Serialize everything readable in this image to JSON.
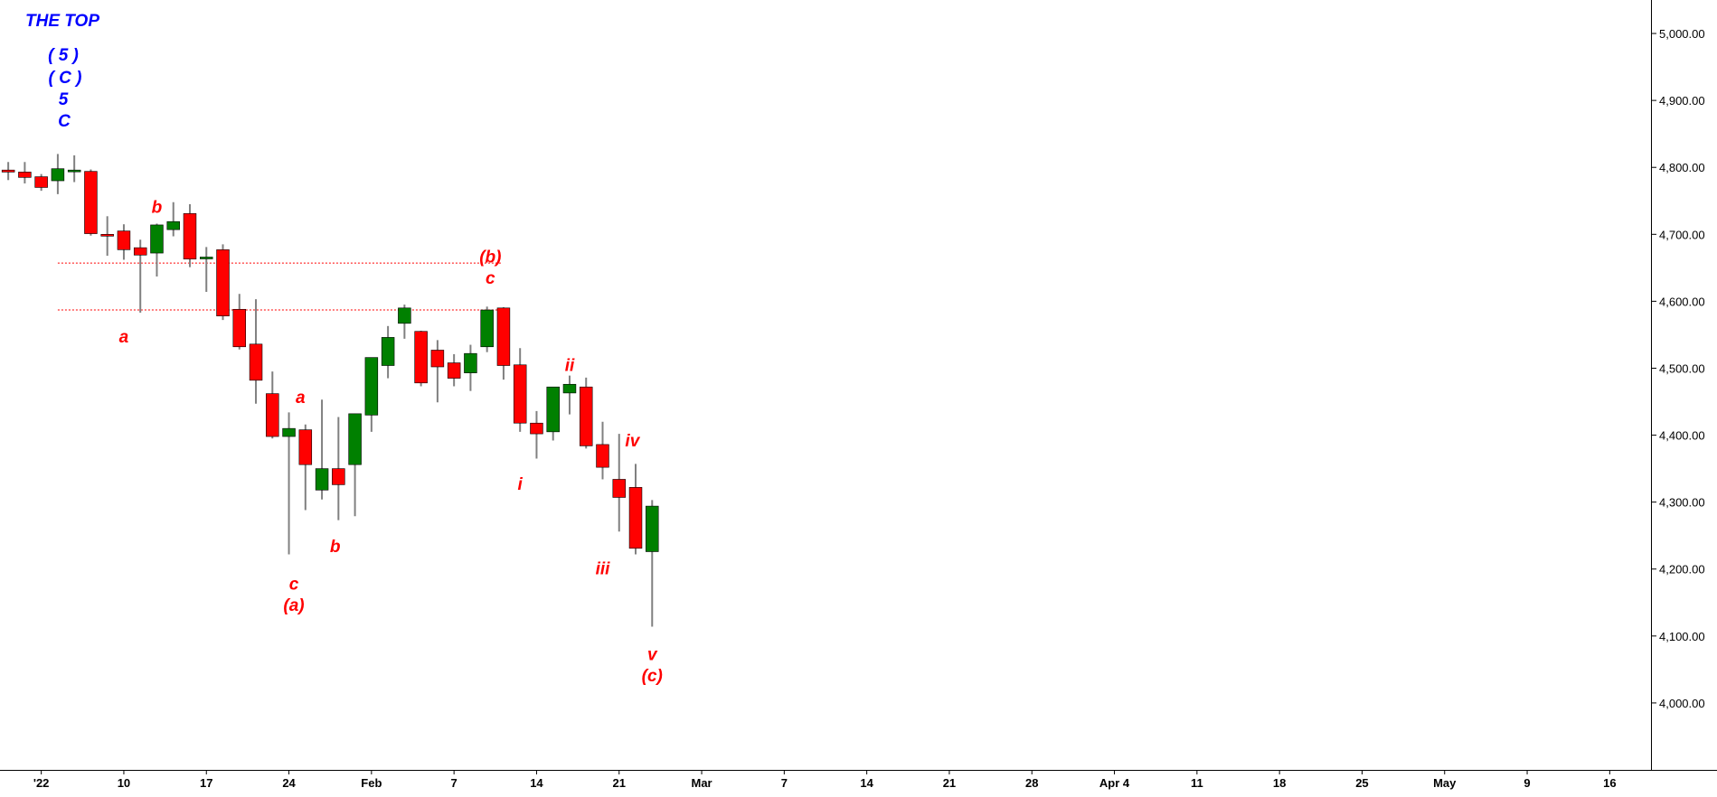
{
  "chart_data": {
    "type": "candlestick",
    "title": "THE TOP",
    "title_labels": [
      "( 5 )",
      "( C )",
      "5",
      "C"
    ],
    "y_ticks": [
      4000,
      4100,
      4200,
      4300,
      4400,
      4500,
      4600,
      4700,
      4800,
      4900,
      5000
    ],
    "y_tick_labels": [
      "4,000.00",
      "4,100.00",
      "4,200.00",
      "4,300.00",
      "4,400.00",
      "4,500.00",
      "4,600.00",
      "4,700.00",
      "4,800.00",
      "4,900.00",
      "5,000.00"
    ],
    "ylim": [
      3900,
      5050
    ],
    "x_tick_labels": [
      "'22",
      "10",
      "17",
      "24",
      "Feb",
      "7",
      "14",
      "21",
      "Mar",
      "7",
      "14",
      "21",
      "28",
      "Apr 4",
      "11",
      "18",
      "25",
      "May",
      "9",
      "16"
    ],
    "x_tick_slots": [
      2,
      7,
      12,
      17,
      22,
      27,
      32,
      37,
      42,
      47,
      52,
      57,
      62,
      67,
      72,
      77,
      82,
      87,
      92,
      97
    ],
    "slots_visible": 100,
    "grid": false,
    "up_color": "#008000",
    "down_color": "#ff0000",
    "wick_color": "#808080",
    "horizontal_levels": [
      4657,
      4587
    ],
    "level_color": "#ff0000",
    "candles": [
      {
        "o": 4796,
        "h": 4808,
        "l": 4781,
        "c": 4793
      },
      {
        "o": 4793,
        "h": 4808,
        "l": 4776,
        "c": 4785
      },
      {
        "o": 4786,
        "h": 4790,
        "l": 4765,
        "c": 4770
      },
      {
        "o": 4780,
        "h": 4820,
        "l": 4760,
        "c": 4798
      },
      {
        "o": 4795,
        "h": 4818,
        "l": 4778,
        "c": 4796
      },
      {
        "o": 4794,
        "h": 4797,
        "l": 4698,
        "c": 4701
      },
      {
        "o": 4700,
        "h": 4727,
        "l": 4668,
        "c": 4698
      },
      {
        "o": 4705,
        "h": 4715,
        "l": 4662,
        "c": 4677
      },
      {
        "o": 4680,
        "h": 4692,
        "l": 4583,
        "c": 4669
      },
      {
        "o": 4672,
        "h": 4716,
        "l": 4637,
        "c": 4714
      },
      {
        "o": 4707,
        "h": 4748,
        "l": 4697,
        "c": 4719
      },
      {
        "o": 4731,
        "h": 4745,
        "l": 4651,
        "c": 4663
      },
      {
        "o": 4666,
        "h": 4681,
        "l": 4614,
        "c": 4666
      },
      {
        "o": 4677,
        "h": 4685,
        "l": 4572,
        "c": 4578
      },
      {
        "o": 4588,
        "h": 4611,
        "l": 4528,
        "c": 4532
      },
      {
        "o": 4536,
        "h": 4603,
        "l": 4447,
        "c": 4482
      },
      {
        "o": 4462,
        "h": 4495,
        "l": 4395,
        "c": 4398
      },
      {
        "o": 4398,
        "h": 4434,
        "l": 4222,
        "c": 4410
      },
      {
        "o": 4408,
        "h": 4416,
        "l": 4288,
        "c": 4356
      },
      {
        "o": 4318,
        "h": 4453,
        "l": 4304,
        "c": 4350
      },
      {
        "o": 4350,
        "h": 4427,
        "l": 4273,
        "c": 4326
      },
      {
        "o": 4356,
        "h": 4432,
        "l": 4279,
        "c": 4432
      },
      {
        "o": 4430,
        "h": 4515,
        "l": 4405,
        "c": 4516
      },
      {
        "o": 4504,
        "h": 4563,
        "l": 4485,
        "c": 4546
      },
      {
        "o": 4567,
        "h": 4595,
        "l": 4544,
        "c": 4590
      },
      {
        "o": 4555,
        "h": 4556,
        "l": 4473,
        "c": 4478
      },
      {
        "o": 4527,
        "h": 4542,
        "l": 4449,
        "c": 4502
      },
      {
        "o": 4508,
        "h": 4521,
        "l": 4473,
        "c": 4485
      },
      {
        "o": 4493,
        "h": 4535,
        "l": 4466,
        "c": 4522
      },
      {
        "o": 4532,
        "h": 4592,
        "l": 4524,
        "c": 4587
      },
      {
        "o": 4590,
        "h": 4591,
        "l": 4483,
        "c": 4504
      },
      {
        "o": 4505,
        "h": 4530,
        "l": 4405,
        "c": 4418
      },
      {
        "o": 4418,
        "h": 4436,
        "l": 4365,
        "c": 4402
      },
      {
        "o": 4405,
        "h": 4471,
        "l": 4392,
        "c": 4472
      },
      {
        "o": 4463,
        "h": 4489,
        "l": 4431,
        "c": 4476
      },
      {
        "o": 4472,
        "h": 4486,
        "l": 4380,
        "c": 4384
      },
      {
        "o": 4386,
        "h": 4420,
        "l": 4334,
        "c": 4352
      },
      {
        "o": 4334,
        "h": 4402,
        "l": 4256,
        "c": 4307
      },
      {
        "o": 4322,
        "h": 4357,
        "l": 4222,
        "c": 4231
      },
      {
        "o": 4226,
        "h": 4303,
        "l": 4114,
        "c": 4294
      }
    ],
    "wave_labels": [
      {
        "text": "b",
        "slot": 9,
        "value": 4732,
        "dy": 0
      },
      {
        "text": "a",
        "slot": 7,
        "value": 4568,
        "dy": 22
      },
      {
        "text": "(b)",
        "slot": 29.2,
        "value": 4658,
        "dy": 0
      },
      {
        "text": "c",
        "slot": 29.2,
        "value": 4626,
        "dy": 0
      },
      {
        "text": "a",
        "slot": 17.7,
        "value": 4448,
        "dy": 0
      },
      {
        "text": "b",
        "slot": 19.8,
        "value": 4255,
        "dy": 22
      },
      {
        "text": "c",
        "slot": 17.3,
        "value": 4199,
        "dy": 22
      },
      {
        "text": "(a)",
        "slot": 17.3,
        "value": 4167,
        "dy": 22
      },
      {
        "text": "ii",
        "slot": 34.0,
        "value": 4496,
        "dy": 0
      },
      {
        "text": "i",
        "slot": 31.0,
        "value": 4348,
        "dy": 22
      },
      {
        "text": "iv",
        "slot": 37.8,
        "value": 4383,
        "dy": 0
      },
      {
        "text": "iii",
        "slot": 36.0,
        "value": 4222,
        "dy": 22
      },
      {
        "text": "v",
        "slot": 39.0,
        "value": 4094,
        "dy": 22
      },
      {
        "text": "(c)",
        "slot": 39.0,
        "value": 4062,
        "dy": 22
      }
    ]
  }
}
